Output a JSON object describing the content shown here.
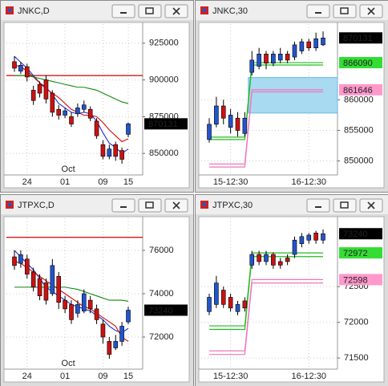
{
  "chart_data": [
    {
      "type": "candlestick",
      "title": "JNKC,D",
      "month_label": "Oct",
      "categories": [
        null,
        null,
        "24",
        null,
        null,
        null,
        null,
        null,
        "01",
        null,
        null,
        null,
        null,
        null,
        "09",
        null,
        null,
        null,
        "15"
      ],
      "open": [
        912400,
        906000,
        909000,
        893000,
        897000,
        900000,
        891000,
        880000,
        876000,
        875000,
        877000,
        880000,
        880000,
        872000,
        856000,
        848000,
        856000,
        852000,
        863000
      ],
      "high": [
        916200,
        912000,
        911000,
        896000,
        899000,
        903000,
        893000,
        883000,
        881000,
        878000,
        884000,
        886000,
        882000,
        874000,
        859000,
        856000,
        858000,
        854000,
        871000
      ],
      "low": [
        905500,
        904000,
        899000,
        883000,
        888000,
        884000,
        875000,
        873000,
        874000,
        868000,
        875000,
        878000,
        872000,
        860000,
        846000,
        846000,
        845000,
        843000,
        861000
      ],
      "close": [
        908000,
        910000,
        902000,
        886000,
        891000,
        887000,
        878000,
        876000,
        879000,
        870000,
        881000,
        883000,
        874000,
        862000,
        848000,
        853000,
        848000,
        846000,
        870131
      ],
      "up_color": "#2255cc",
      "down_color": "#cc1111",
      "series": [
        {
          "color": "#1a2fd0",
          "values": [
            916000,
            912000,
            908000,
            903000,
            898000,
            895000,
            890000,
            884000,
            881000,
            878000,
            877000,
            878000,
            877000,
            872000,
            864000,
            857000,
            854000,
            850000,
            853000
          ]
        },
        {
          "color": "#d01010",
          "values": [
            910000,
            909000,
            906000,
            902000,
            898000,
            894000,
            891000,
            888000,
            884000,
            880000,
            878000,
            876000,
            876000,
            875000,
            871000,
            866000,
            862000,
            858000,
            860000
          ]
        },
        {
          "color": "#118811",
          "values": [
            903000,
            903000,
            903000,
            902000,
            901000,
            900000,
            899000,
            898000,
            897000,
            896000,
            895000,
            895000,
            894000,
            893000,
            891000,
            889000,
            887000,
            885000,
            884000
          ]
        }
      ],
      "levels": [
        {
          "value": 903000,
          "color": "#cc0000"
        }
      ],
      "price_tags": [
        {
          "value": 870131,
          "color": "#000000",
          "text_color": "#ffffff"
        }
      ],
      "ylim": [
        837000,
        938000
      ],
      "yticks": [
        850000,
        875000,
        900000,
        925000
      ],
      "grid": true
    },
    {
      "type": "candlestick",
      "title": "JNKC,30",
      "categories": [
        null,
        null,
        null,
        "15-12:30",
        null,
        null,
        null,
        null,
        null,
        null,
        null,
        null,
        null,
        null,
        "16-12:30",
        null,
        null
      ],
      "open": [
        853500,
        856000,
        859000,
        855500,
        857000,
        854500,
        864500,
        865500,
        867500,
        866000,
        866500,
        867500,
        867000,
        868000,
        869500,
        868500,
        869000
      ],
      "high": [
        857000,
        860500,
        860000,
        858500,
        858000,
        858000,
        868000,
        868500,
        868000,
        868000,
        868500,
        868000,
        869500,
        870000,
        870000,
        871000,
        871200
      ],
      "low": [
        853000,
        855500,
        856000,
        854500,
        854000,
        854000,
        864000,
        865000,
        865000,
        865500,
        866000,
        866000,
        866500,
        867500,
        868000,
        868000,
        868800
      ],
      "close": [
        856000,
        859000,
        857000,
        857500,
        855000,
        857000,
        866500,
        867500,
        866000,
        867500,
        867500,
        866500,
        869000,
        869500,
        868500,
        870000,
        870131
      ],
      "up_color": "#2255cc",
      "down_color": "#cc1111",
      "step_lines": [
        {
          "color": "#22bb22",
          "values": [
            853900,
            853900,
            853900,
            853900,
            853900,
            853900,
            866090,
            866090,
            866090,
            866090,
            866090,
            866090,
            866090,
            866090,
            866090,
            866090,
            866090
          ]
        },
        {
          "color": "#22bb22",
          "values": [
            853500,
            853500,
            853500,
            853500,
            853500,
            853500,
            865700,
            865700,
            865700,
            865700,
            865700,
            865700,
            865700,
            865700,
            865700,
            865700,
            865700
          ]
        },
        {
          "color": "#ee77bb",
          "values": [
            849500,
            849500,
            849500,
            849500,
            849500,
            849500,
            861646,
            861646,
            861646,
            861646,
            861646,
            861646,
            861646,
            861646,
            861646,
            861646,
            861646
          ]
        },
        {
          "color": "#ee77bb",
          "values": [
            849000,
            849000,
            849000,
            849000,
            849000,
            849000,
            861300,
            861300,
            861300,
            861300,
            861300,
            861300,
            861300,
            861300,
            861300,
            861300,
            861300
          ]
        }
      ],
      "zone": {
        "top": 863650,
        "bottom": 857840,
        "color": "#a8daf2"
      },
      "price_tags": [
        {
          "value": 870131,
          "color": "#000000",
          "text_color": "#ffffff"
        },
        {
          "value": 866090,
          "color": "#33dd33",
          "text_color": "#000000"
        },
        {
          "value": 861646,
          "color": "#ff99cc",
          "text_color": "#000000"
        }
      ],
      "ylim": [
        848100,
        872400
      ],
      "yticks": [
        850000,
        855000,
        860000
      ],
      "grid": true
    },
    {
      "type": "candlestick",
      "title": "JTPXC,D",
      "month_label": "Oct",
      "categories": [
        null,
        null,
        "24",
        null,
        null,
        null,
        null,
        null,
        "01",
        null,
        null,
        null,
        null,
        null,
        "09",
        null,
        null,
        null,
        "15"
      ],
      "open": [
        75700,
        75400,
        75600,
        75000,
        74700,
        74500,
        74000,
        74800,
        73700,
        73500,
        73100,
        73200,
        73700,
        73300,
        72600,
        71800,
        71500,
        71800,
        72700
      ],
      "high": [
        76000,
        76000,
        75800,
        75200,
        74900,
        74700,
        75600,
        75000,
        73900,
        73700,
        73700,
        74200,
        73900,
        73500,
        72800,
        72000,
        72100,
        72700,
        73400
      ],
      "low": [
        75100,
        75200,
        74700,
        74100,
        73700,
        73500,
        73900,
        73300,
        73100,
        72600,
        72900,
        73100,
        73100,
        72600,
        71700,
        71000,
        71400,
        71600,
        72600
      ],
      "close": [
        75300,
        75800,
        74900,
        74300,
        73900,
        73700,
        75300,
        73600,
        73300,
        72800,
        73500,
        74000,
        73300,
        72800,
        72000,
        71200,
        71800,
        72500,
        73240
      ],
      "up_color": "#2255cc",
      "down_color": "#cc1111",
      "series": [
        {
          "color": "#1a2fd0",
          "values": [
            76000,
            75700,
            75400,
            75100,
            74700,
            74300,
            74100,
            73900,
            73700,
            73500,
            73400,
            73300,
            73200,
            73000,
            72800,
            72500,
            72300,
            72200,
            72400
          ]
        },
        {
          "color": "#d01010",
          "values": [
            75500,
            75400,
            75200,
            75000,
            74800,
            74600,
            74400,
            74200,
            74000,
            73800,
            73600,
            73400,
            73300,
            73100,
            72900,
            72700,
            72500,
            72000,
            71800
          ]
        },
        {
          "color": "#118811",
          "values": [
            74300,
            74300,
            74300,
            74300,
            74300,
            74300,
            74300,
            74300,
            74300,
            74250,
            74200,
            74100,
            74000,
            73900,
            73800,
            73700,
            73700,
            73700,
            73650
          ]
        }
      ],
      "levels": [
        {
          "value": 76600,
          "color": "#cc0000"
        }
      ],
      "price_tags": [
        {
          "value": 73240,
          "color": "#000000",
          "text_color": "#ffffff"
        }
      ],
      "ylim": [
        70630,
        77480
      ],
      "yticks": [
        72000,
        74000,
        76000
      ],
      "grid": true
    },
    {
      "type": "candlestick",
      "title": "JTPXC,30",
      "categories": [
        null,
        null,
        null,
        "15-12:30",
        null,
        null,
        null,
        null,
        null,
        null,
        null,
        null,
        null,
        null,
        "16-12:30",
        null,
        null
      ],
      "open": [
        72150,
        72250,
        72450,
        72350,
        72150,
        72300,
        72800,
        72950,
        72850,
        72950,
        72850,
        72900,
        72950,
        73100,
        73150,
        73250,
        73150
      ],
      "high": [
        72400,
        72650,
        72500,
        72400,
        72300,
        72350,
        73000,
        73000,
        73000,
        72980,
        72900,
        72950,
        73200,
        73250,
        73250,
        73280,
        73300
      ],
      "low": [
        72100,
        72200,
        72200,
        72150,
        72100,
        72150,
        72750,
        72800,
        72800,
        72750,
        72750,
        72800,
        72900,
        73050,
        73100,
        73100,
        73100
      ],
      "close": [
        72350,
        72550,
        72250,
        72200,
        72250,
        72200,
        72950,
        72850,
        72950,
        72800,
        72800,
        72850,
        73150,
        73200,
        73220,
        73150,
        73240
      ],
      "up_color": "#2255cc",
      "down_color": "#cc1111",
      "step_lines": [
        {
          "color": "#22bb22",
          "values": [
            71950,
            71950,
            71950,
            71950,
            71950,
            71950,
            72972,
            72972,
            72972,
            72972,
            72972,
            72972,
            72972,
            72972,
            72972,
            72972,
            72972
          ]
        },
        {
          "color": "#22bb22",
          "values": [
            71900,
            71900,
            71900,
            71900,
            71900,
            71900,
            72920,
            72920,
            72920,
            72920,
            72920,
            72920,
            72920,
            72920,
            72920,
            72920,
            72920
          ]
        },
        {
          "color": "#ee77bb",
          "values": [
            71600,
            71600,
            71600,
            71600,
            71600,
            71600,
            72598,
            72598,
            72598,
            72598,
            72598,
            72598,
            72598,
            72598,
            72598,
            72598,
            72598
          ]
        },
        {
          "color": "#ee77bb",
          "values": [
            71550,
            71550,
            71550,
            71550,
            71550,
            71550,
            72550,
            72550,
            72550,
            72550,
            72550,
            72550,
            72550,
            72550,
            72550,
            72550,
            72550
          ]
        }
      ],
      "price_tags": [
        {
          "value": 73240,
          "color": "#000000",
          "text_color": "#ffffff"
        },
        {
          "value": 72972,
          "color": "#33dd33",
          "text_color": "#000000"
        },
        {
          "value": 72598,
          "color": "#ff99cc",
          "text_color": "#000000"
        }
      ],
      "ylim": [
        71378,
        73456
      ],
      "yticks": [
        71500,
        72000,
        72500
      ],
      "grid": true
    }
  ]
}
